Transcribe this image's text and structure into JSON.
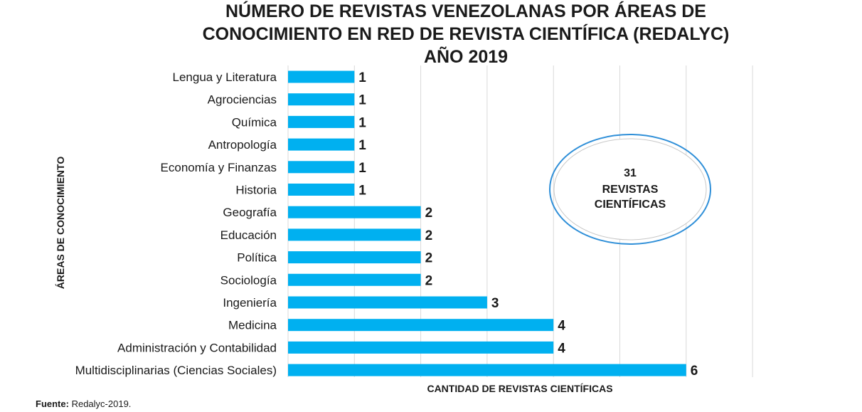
{
  "chart_data": {
    "type": "bar",
    "orientation": "horizontal",
    "title": [
      "NÚMERO DE REVISTAS VENEZOLANAS  POR ÁREAS DE",
      "CONOCIMIENTO EN RED DE REVISTA CIENTÍFICA (REDALYC)",
      "AÑO 2019"
    ],
    "xlabel": "CANTIDAD DE REVISTAS CIENTÍFICAS",
    "ylabel": "ÁREAS DE CONOCIMIENTO",
    "categories": [
      "Lengua y Literatura",
      "Agrociencias",
      "Química",
      "Antropología",
      "Economía y Finanzas",
      "Historia",
      "Geografía",
      "Educación",
      "Política",
      "Sociología",
      "Ingeniería",
      "Medicina",
      "Administración y Contabilidad",
      "Multidisciplinarias (Ciencias Sociales)"
    ],
    "values": [
      1,
      1,
      1,
      1,
      1,
      1,
      2,
      2,
      2,
      2,
      3,
      4,
      4,
      6
    ],
    "xlim": [
      0,
      7
    ],
    "grid": "vertical",
    "bar_color": "#00b0f0",
    "data_labels": true,
    "annotation": {
      "lines": [
        "31",
        "REVISTAS",
        "CIENTÍFICAS"
      ],
      "border_color": "#2f8fd8"
    }
  },
  "source": {
    "label": "Fuente:",
    "text": "Redalyc-2019."
  }
}
